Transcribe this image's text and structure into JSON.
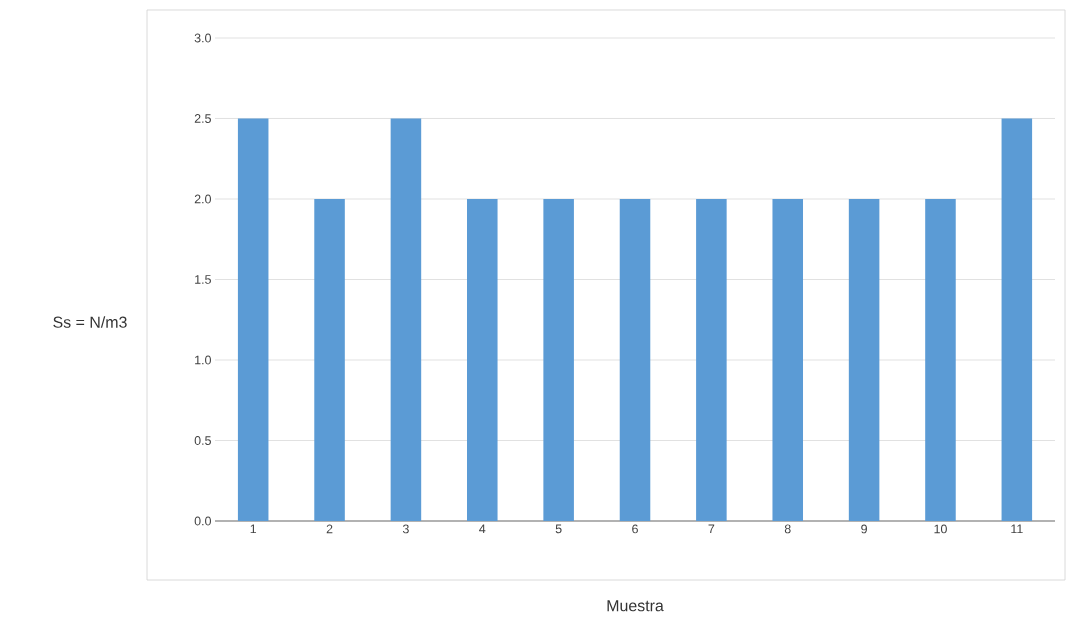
{
  "chart_data": {
    "type": "bar",
    "xlabel": "Muestra",
    "ylabel": "Ss = N/m3",
    "categories": [
      "1",
      "2",
      "3",
      "4",
      "5",
      "6",
      "7",
      "8",
      "9",
      "10",
      "11"
    ],
    "values": [
      2.5,
      2.0,
      2.5,
      2.0,
      2.0,
      2.0,
      2.0,
      2.0,
      2.0,
      2.0,
      2.5
    ],
    "color": "#5b9bd5",
    "ylim": [
      0,
      3
    ],
    "grid": "y",
    "yticks": [
      {
        "value": 0,
        "label": "0.0"
      },
      {
        "value": 0.5,
        "label": "0.5"
      },
      {
        "value": 1,
        "label": "1.0"
      },
      {
        "value": 1.5,
        "label": "1.5"
      },
      {
        "value": 2,
        "label": "2.0"
      },
      {
        "value": 2.5,
        "label": "2.5"
      },
      {
        "value": 3,
        "label": "3.0"
      }
    ]
  }
}
